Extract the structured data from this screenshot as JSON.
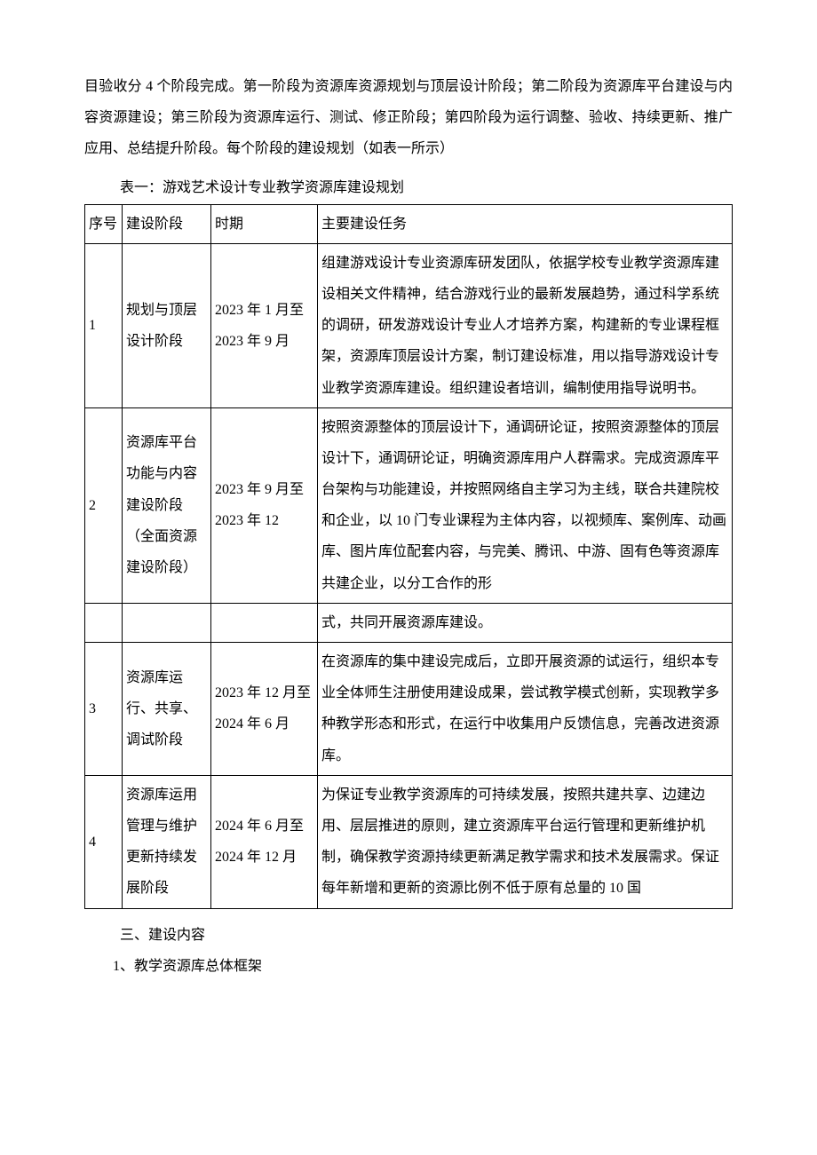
{
  "intro": "目验收分 4 个阶段完成。第一阶段为资源库资源规划与顶层设计阶段；第二阶段为资源库平台建设与内容资源建设；第三阶段为资源库运行、测试、修正阶段；第四阶段为运行调整、验收、持续更新、推广应用、总结提升阶段。每个阶段的建设规划（如表一所示）",
  "table_caption": "表一：游戏艺术设计专业教学资源库建设规划",
  "table": {
    "headers": {
      "num": "序号",
      "phase": "建设阶段",
      "period": "时期",
      "task": "主要建设任务"
    },
    "rows": [
      {
        "num": "1",
        "phase": "规划与顶层设计阶段",
        "period": "2023 年 1 月至 2023 年 9 月",
        "task": "组建游戏设计专业资源库研发团队，依据学校专业教学资源库建设相关文件精神，结合游戏行业的最新发展趋势，通过科学系统的调研，研发游戏设计专业人才培养方案，构建新的专业课程框架，资源库顶层设计方案，制订建设标准，用以指导游戏设计专业教学资源库建设。组织建设者培训，编制使用指导说明书。"
      },
      {
        "num": "2",
        "phase": "资源库平台功能与内容建设阶段（全面资源建设阶段）",
        "period": "2023 年 9 月至2023 年 12",
        "task": "按照资源整体的顶层设计下，通调研论证，按照资源整体的顶层设计下，通调研论证，明确资源库用户人群需求。完成资源库平台架构与功能建设，并按照网络自主学习为主线，联合共建院校和企业，以 10 门专业课程为主体内容，以视频库、案例库、动画库、图片库位配套内容，与完美、腾讯、中游、固有色等资源库共建企业，以分工合作的形"
      },
      {
        "continuation": "式，共同开展资源库建设。"
      },
      {
        "num": "3",
        "phase": "资源库运行、共享、调试阶段",
        "period": "2023 年 12 月至2024 年 6 月",
        "task": "在资源库的集中建设完成后，立即开展资源的试运行，组织本专业全体师生注册使用建设成果，尝试教学模式创新，实现教学多种教学形态和形式，在运行中收集用户反馈信息，完善改进资源库。"
      },
      {
        "num": "4",
        "phase": "资源库运用管理与维护更新持续发展阶段",
        "period": "2024 年 6 月至2024 年 12 月",
        "task": "为保证专业教学资源库的可持续发展，按照共建共享、边建边用、层层推进的原则，建立资源库平台运行管理和更新维护机制，确保教学资源持续更新满足教学需求和技术发展需求。保证每年新增和更新的资源比例不低于原有总量的 10 国"
      }
    ]
  },
  "section_title": "三、建设内容",
  "subsection_title": "1、教学资源库总体框架"
}
